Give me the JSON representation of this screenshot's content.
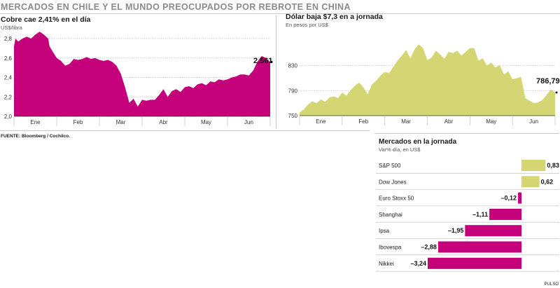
{
  "headline": "MERCADOS EN CHILE Y EL MUNDO PREOCUPADOS POR REBROTE EN CHINA",
  "source": "FUENTE: Bloomberg / Cochilco.",
  "credit": "PULSO",
  "colors": {
    "magenta": "#c4007a",
    "lime": "#d4d674",
    "grid": "#bdbdbd"
  },
  "chart_data": [
    {
      "type": "area",
      "title": "Cobre cae 2,41% en el día",
      "unit": "US$/libra",
      "yticks": [
        "2,8",
        "2,6",
        "2,4",
        "2,2",
        "2,0"
      ],
      "ylim": [
        2.0,
        2.8
      ],
      "months": [
        "Ene",
        "Feb",
        "Mar",
        "Abr",
        "May",
        "Jun"
      ],
      "x": [
        0,
        1,
        3,
        6,
        9,
        12,
        15,
        18,
        21,
        24,
        25,
        27,
        30,
        33,
        36,
        39,
        42,
        45,
        48,
        51,
        54,
        57,
        60,
        63,
        66,
        69,
        72,
        75,
        78,
        81,
        84,
        87,
        90,
        93,
        96,
        99,
        102,
        105,
        108,
        111,
        114,
        117,
        120,
        123,
        126,
        129,
        132,
        135,
        138,
        141,
        144,
        147,
        150,
        153,
        156,
        159,
        162,
        165,
        168,
        171,
        174,
        177,
        180
      ],
      "y": [
        2.72,
        2.8,
        2.77,
        2.8,
        2.82,
        2.8,
        2.84,
        2.87,
        2.84,
        2.8,
        2.72,
        2.67,
        2.6,
        2.57,
        2.52,
        2.54,
        2.59,
        2.58,
        2.59,
        2.61,
        2.59,
        2.6,
        2.58,
        2.57,
        2.58,
        2.56,
        2.52,
        2.44,
        2.3,
        2.14,
        2.18,
        2.1,
        2.17,
        2.16,
        2.17,
        2.17,
        2.22,
        2.28,
        2.2,
        2.26,
        2.28,
        2.25,
        2.3,
        2.31,
        2.29,
        2.33,
        2.34,
        2.32,
        2.36,
        2.35,
        2.38,
        2.37,
        2.38,
        2.4,
        2.41,
        2.43,
        2.43,
        2.42,
        2.47,
        2.56,
        2.62,
        2.6,
        2.56
      ],
      "last_label": "2,561"
    },
    {
      "type": "area",
      "title": "Dólar baja $7,3 en a jornada",
      "unit": "En pesos por US$",
      "yticks": [
        "830",
        "790",
        "750"
      ],
      "ylim": [
        750,
        870
      ],
      "months": [
        "Ene",
        "Feb",
        "Mar",
        "Abr",
        "May",
        "Jun"
      ],
      "x": [
        0,
        3,
        6,
        9,
        12,
        15,
        18,
        21,
        24,
        27,
        30,
        33,
        36,
        39,
        42,
        45,
        48,
        51,
        54,
        57,
        60,
        63,
        66,
        69,
        72,
        75,
        78,
        81,
        84,
        87,
        90,
        93,
        96,
        99,
        102,
        105,
        108,
        111,
        114,
        117,
        120,
        123,
        126,
        129,
        132,
        135,
        138,
        141,
        144,
        147,
        150,
        153,
        156,
        159,
        162,
        165,
        168,
        171,
        174,
        177,
        180
      ],
      "y": [
        755,
        760,
        768,
        773,
        770,
        776,
        772,
        779,
        781,
        778,
        787,
        782,
        791,
        798,
        803,
        795,
        784,
        800,
        806,
        814,
        820,
        818,
        828,
        838,
        846,
        855,
        842,
        856,
        864,
        858,
        839,
        843,
        854,
        848,
        841,
        852,
        850,
        854,
        846,
        852,
        858,
        858,
        838,
        842,
        830,
        835,
        827,
        831,
        816,
        821,
        808,
        810,
        812,
        778,
        774,
        770,
        771,
        775,
        783,
        792,
        787
      ]
    },
    {
      "type": "bar",
      "title": "Mercados en la jornada",
      "unit": "Var% día, en US$",
      "categories": [
        "S&P 500",
        "Dow Jones",
        "Euro Stoxx 50",
        "Shanghai",
        "Ipsa",
        "Ibovespa",
        "Nikkei"
      ],
      "values": [
        0.83,
        0.62,
        -0.12,
        -1.11,
        -1.95,
        -2.88,
        -3.24
      ],
      "labels": [
        "0,83",
        "0,62",
        "–0,12",
        "–1,11",
        "–1,95",
        "–2,88",
        "–3,24"
      ]
    }
  ]
}
